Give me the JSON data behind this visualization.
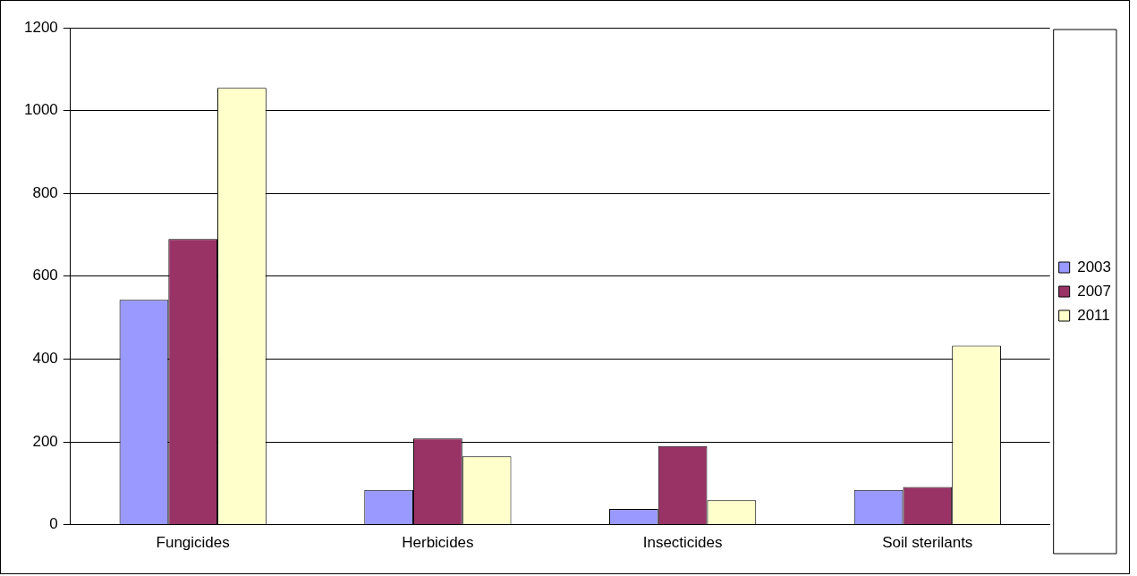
{
  "chart_data": {
    "type": "bar",
    "categories": [
      "Fungicides",
      "Herbicides",
      "Insecticides",
      "Soil sterilants"
    ],
    "series": [
      {
        "name": "2003",
        "color": "#9999ff",
        "values": [
          543,
          84,
          38,
          84
        ]
      },
      {
        "name": "2007",
        "color": "#993366",
        "values": [
          690,
          208,
          190,
          91
        ]
      },
      {
        "name": "2011",
        "color": "#ffffcc",
        "values": [
          1055,
          165,
          59,
          432
        ]
      }
    ],
    "ylim": [
      0,
      1200
    ],
    "yticks": [
      0,
      200,
      400,
      600,
      800,
      1000,
      1200
    ],
    "grid": "y",
    "legend": "right"
  }
}
